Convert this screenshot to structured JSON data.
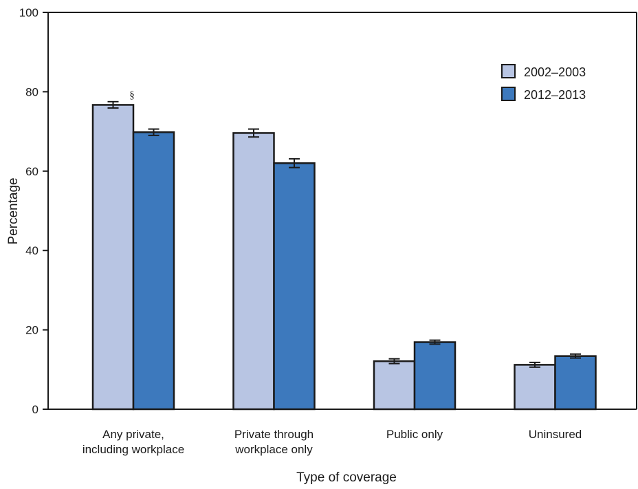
{
  "chart_data": {
    "type": "bar",
    "title": "",
    "xlabel": "Type of coverage",
    "ylabel": "Percentage",
    "ylim": [
      0,
      100
    ],
    "yticks": [
      0,
      20,
      40,
      60,
      80,
      100
    ],
    "grid": false,
    "legend_position": "top-right",
    "categories": [
      [
        "Any private,",
        "including workplace"
      ],
      [
        "Private through",
        "workplace only"
      ],
      [
        "Public only"
      ],
      [
        "Uninsured"
      ]
    ],
    "series": [
      {
        "name": "2002–2003",
        "color": "#b8c5e3",
        "values": [
          76.7,
          69.6,
          12.1,
          11.2
        ],
        "error": [
          0.8,
          1.0,
          0.6,
          0.6
        ]
      },
      {
        "name": "2012–2013",
        "color": "#3d79bd",
        "values": [
          69.8,
          62.0,
          16.9,
          13.4
        ],
        "error": [
          0.8,
          1.1,
          0.5,
          0.5
        ]
      }
    ],
    "annotations": [
      {
        "text": "§",
        "category_index": 0,
        "series_index": 0
      }
    ]
  }
}
